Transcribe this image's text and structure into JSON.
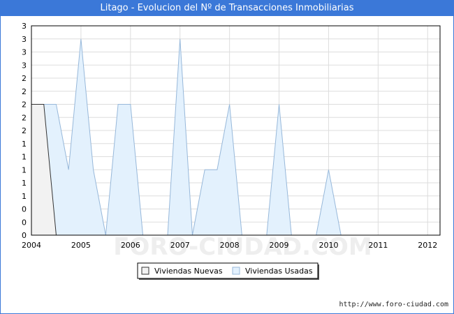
{
  "title": "Litago - Evolucion del Nº de Transacciones Inmobiliarias",
  "watermark": "FORO-CIUDAD.COM",
  "source_url": "http://www.foro-ciudad.com",
  "colors": {
    "nuevas_fill": "#f2f2f2",
    "nuevas_line": "#333333",
    "usadas_fill": "#e3f1fd",
    "usadas_line": "#97b8da",
    "grid": "#dddddd",
    "title_bg": "#3b78d8"
  },
  "chart_data": {
    "type": "area",
    "x": [
      2004.0,
      2004.25,
      2004.5,
      2004.75,
      2005.0,
      2005.25,
      2005.5,
      2005.75,
      2006.0,
      2006.25,
      2006.5,
      2006.75,
      2007.0,
      2007.25,
      2007.5,
      2007.75,
      2008.0,
      2008.25,
      2008.5,
      2008.75,
      2009.0,
      2009.25,
      2009.5,
      2009.75,
      2010.0,
      2010.25,
      2010.5,
      2010.75,
      2011.0,
      2011.25,
      2011.5,
      2011.75,
      2012.0
    ],
    "series": [
      {
        "name": "Viviendas Nuevas",
        "values": [
          1.0,
          1.0,
          0.0,
          0.0,
          0.0,
          0.0,
          0.0,
          0.0,
          0.0,
          0.0,
          0.0,
          0.0,
          0.0,
          0.0,
          0.0,
          0.0,
          0.0,
          0.0,
          0.0,
          0.0,
          0.0,
          0.0,
          0.0,
          0.0,
          0.0,
          0.0,
          0.0,
          0.0,
          0.0,
          0.0,
          0.0,
          0.0,
          0.0
        ]
      },
      {
        "name": "Viviendas Usadas",
        "values": [
          1.0,
          1.0,
          1.0,
          0.5,
          1.5,
          0.5,
          0.0,
          1.0,
          1.0,
          0.0,
          0.0,
          0.0,
          1.5,
          0.0,
          0.5,
          0.5,
          1.0,
          0.0,
          0.0,
          0.0,
          1.0,
          0.0,
          0.0,
          0.0,
          0.5,
          0.0,
          0.0,
          0.0,
          0.0,
          0.0,
          0.0,
          0.0,
          0.0
        ]
      }
    ],
    "x_ticks": [
      "2004",
      "2005",
      "2006",
      "2007",
      "2008",
      "2009",
      "2010",
      "2011",
      "2012"
    ],
    "y_tick_labels": [
      "0",
      "0",
      "0",
      "1",
      "1",
      "1",
      "1",
      "1",
      "2",
      "2",
      "2",
      "2",
      "2",
      "3",
      "3",
      "3",
      "3"
    ],
    "xlim": [
      2004,
      2012.25
    ],
    "ylim": [
      0,
      1.6
    ],
    "grid": true,
    "legend_position": "bottom-center",
    "title": "Litago - Evolucion del Nº de Transacciones Inmobiliarias",
    "xlabel": "",
    "ylabel": ""
  }
}
